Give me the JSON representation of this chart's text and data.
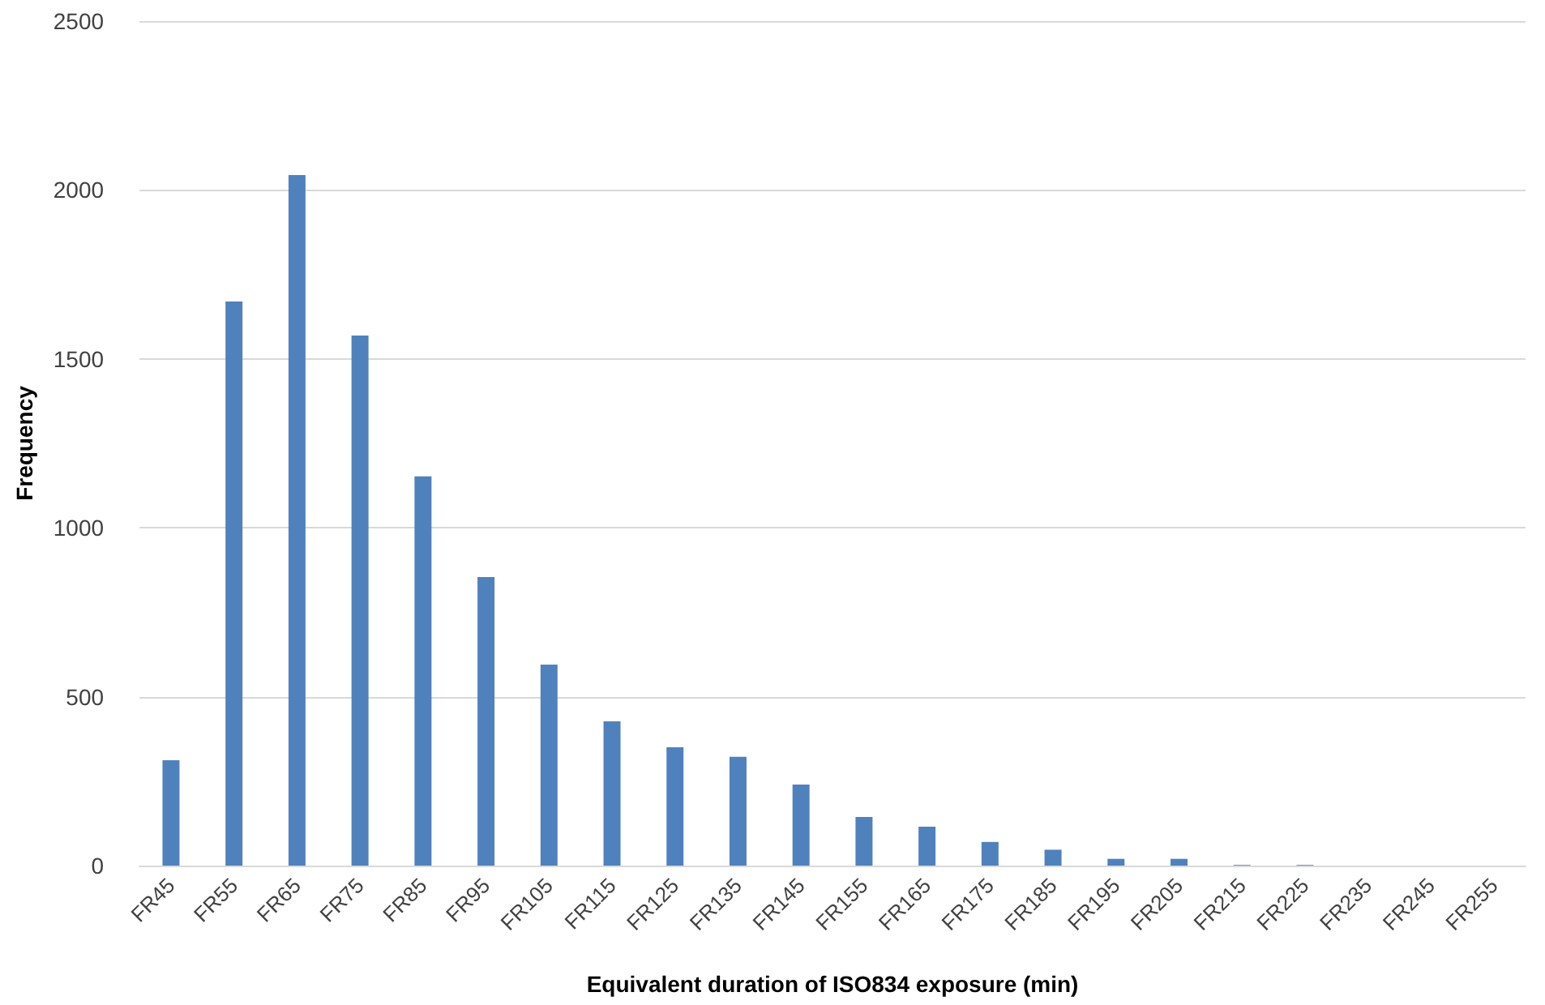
{
  "chart_data": {
    "type": "bar",
    "xlabel": "Equivalent duration of ISO834 exposure (min)",
    "ylabel": "Frequency",
    "categories": [
      "FR45",
      "FR55",
      "FR65",
      "FR75",
      "FR85",
      "FR95",
      "FR105",
      "FR115",
      "FR125",
      "FR135",
      "FR145",
      "FR155",
      "FR165",
      "FR175",
      "FR185",
      "FR195",
      "FR205",
      "FR215",
      "FR225",
      "FR235",
      "FR245",
      "FR255"
    ],
    "values": [
      312,
      1670,
      2044,
      1569,
      1152,
      854,
      595,
      427,
      350,
      322,
      240,
      144,
      115,
      70,
      47,
      20,
      20,
      2,
      2,
      0,
      0,
      0
    ],
    "color": "#4f81bd",
    "ylim": [
      0,
      2500
    ],
    "yticks": [
      0,
      500,
      1000,
      1500,
      2000,
      2500
    ],
    "grid": "y"
  }
}
